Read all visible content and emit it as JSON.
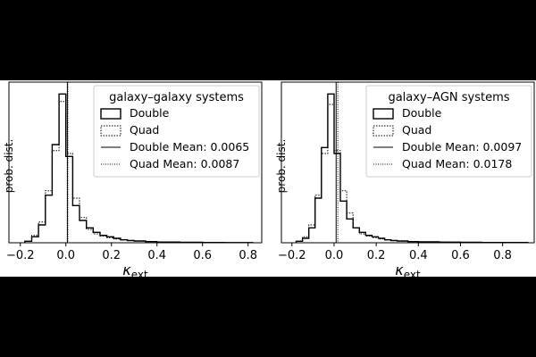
{
  "chart_data": [
    {
      "type": "histogram",
      "ylabel": "prob. dist.",
      "xlabel": "κext",
      "xlim": [
        -0.25,
        0.86
      ],
      "xticks": [
        -0.2,
        0.0,
        0.2,
        0.4,
        0.6,
        0.8
      ],
      "xtick_labels": [
        "−0.2",
        "0.0",
        "0.2",
        "0.4",
        "0.6",
        "0.8"
      ],
      "y_ticks_labeled": false,
      "ylim": [
        0,
        1.08
      ],
      "grid": false,
      "legend": {
        "title": "galaxy–galaxy systems",
        "placement": "top-right",
        "entries": [
          {
            "label": "Double",
            "symbol": "solid-box"
          },
          {
            "label": "Quad",
            "symbol": "dotted-box"
          },
          {
            "label": "Double Mean: 0.0065",
            "symbol": "solid-line"
          },
          {
            "label": "Quad Mean: 0.0087",
            "symbol": "dotted-line"
          }
        ]
      },
      "bin_edges": [
        -0.18,
        -0.15,
        -0.12,
        -0.09,
        -0.06,
        -0.03,
        0.0,
        0.03,
        0.06,
        0.09,
        0.12,
        0.15,
        0.18,
        0.21,
        0.24,
        0.27,
        0.3,
        0.35,
        0.4,
        0.5,
        0.6,
        0.7,
        0.82
      ],
      "series": [
        {
          "name": "Double",
          "style": "solid",
          "values": [
            0.01,
            0.04,
            0.12,
            0.32,
            0.66,
            1.0,
            0.58,
            0.25,
            0.15,
            0.1,
            0.07,
            0.05,
            0.04,
            0.03,
            0.02,
            0.015,
            0.012,
            0.008,
            0.005,
            0.003,
            0.002,
            0.001
          ]
        },
        {
          "name": "Quad",
          "style": "dotted",
          "values": [
            0.01,
            0.05,
            0.14,
            0.35,
            0.62,
            0.95,
            0.6,
            0.3,
            0.17,
            0.09,
            0.06,
            0.045,
            0.035,
            0.025,
            0.02,
            0.015,
            0.01,
            0.007,
            0.005,
            0.003,
            0.002,
            0.001
          ]
        }
      ],
      "means": [
        {
          "name": "Double Mean",
          "value": 0.0065,
          "style": "solid"
        },
        {
          "name": "Quad Mean",
          "value": 0.0087,
          "style": "dotted"
        }
      ]
    },
    {
      "type": "histogram",
      "ylabel": "prob. dist.",
      "xlabel": "κext",
      "xlim": [
        -0.25,
        0.95
      ],
      "xticks": [
        -0.2,
        0.0,
        0.2,
        0.4,
        0.6,
        0.8
      ],
      "xtick_labels": [
        "−0.2",
        "0.0",
        "0.2",
        "0.4",
        "0.6",
        "0.8"
      ],
      "y_ticks_labeled": false,
      "ylim": [
        0,
        1.08
      ],
      "grid": false,
      "legend": {
        "title": "galaxy–AGN systems",
        "placement": "top-right",
        "entries": [
          {
            "label": "Double",
            "symbol": "solid-box"
          },
          {
            "label": "Quad",
            "symbol": "dotted-box"
          },
          {
            "label": "Double Mean: 0.0097",
            "symbol": "solid-line"
          },
          {
            "label": "Quad Mean: 0.0178",
            "symbol": "dotted-line"
          }
        ]
      },
      "bin_edges": [
        -0.18,
        -0.15,
        -0.12,
        -0.09,
        -0.06,
        -0.03,
        0.0,
        0.03,
        0.06,
        0.09,
        0.12,
        0.15,
        0.18,
        0.21,
        0.24,
        0.27,
        0.3,
        0.35,
        0.4,
        0.5,
        0.6,
        0.7,
        0.92
      ],
      "series": [
        {
          "name": "Double",
          "style": "solid",
          "values": [
            0.01,
            0.03,
            0.1,
            0.3,
            0.64,
            1.0,
            0.6,
            0.28,
            0.16,
            0.1,
            0.07,
            0.05,
            0.04,
            0.03,
            0.02,
            0.015,
            0.012,
            0.008,
            0.006,
            0.004,
            0.003,
            0.002
          ]
        },
        {
          "name": "Quad",
          "style": "dotted",
          "values": [
            0.01,
            0.04,
            0.12,
            0.32,
            0.6,
            0.93,
            0.62,
            0.35,
            0.2,
            0.1,
            0.06,
            0.045,
            0.035,
            0.025,
            0.02,
            0.015,
            0.01,
            0.008,
            0.006,
            0.004,
            0.003,
            0.002
          ]
        }
      ],
      "means": [
        {
          "name": "Double Mean",
          "value": 0.0097,
          "style": "solid"
        },
        {
          "name": "Quad Mean",
          "value": 0.0178,
          "style": "dotted"
        }
      ]
    }
  ]
}
